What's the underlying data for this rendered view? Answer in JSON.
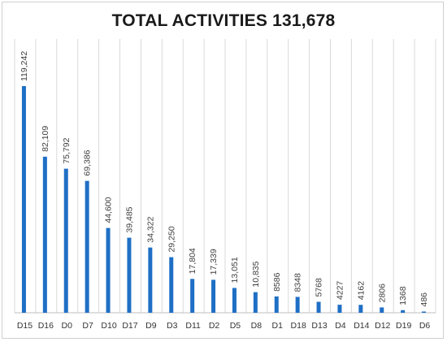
{
  "chart_data": {
    "type": "bar",
    "title": "TOTAL ACTIVITIES 131,678",
    "xlabel": "",
    "ylabel": "",
    "categories": [
      "D15",
      "D16",
      "D0",
      "D7",
      "D10",
      "D17",
      "D9",
      "D3",
      "D11",
      "D2",
      "D5",
      "D8",
      "D1",
      "D18",
      "D13",
      "D4",
      "D14",
      "D12",
      "D19",
      "D6"
    ],
    "values": [
      119242,
      82109,
      75792,
      69386,
      44600,
      39485,
      34322,
      29250,
      17804,
      17339,
      13051,
      10835,
      8586,
      8348,
      5768,
      4227,
      4162,
      2806,
      1368,
      486
    ],
    "value_labels": [
      "119,242",
      "82,109",
      "75,792",
      "69,386",
      "44,600",
      "39,485",
      "34,322",
      "29,250",
      "17,804",
      "17,339",
      "13,051",
      "10,835",
      "8586",
      "8348",
      "5768",
      "4227",
      "4162",
      "2806",
      "1368",
      "486"
    ],
    "ylim": [
      0,
      120000
    ],
    "grid": "vertical",
    "legend": "none",
    "colors": {
      "bar": "#1f6fc5",
      "grid": "#d9d9d9",
      "axis": "#bfbfbf"
    }
  }
}
